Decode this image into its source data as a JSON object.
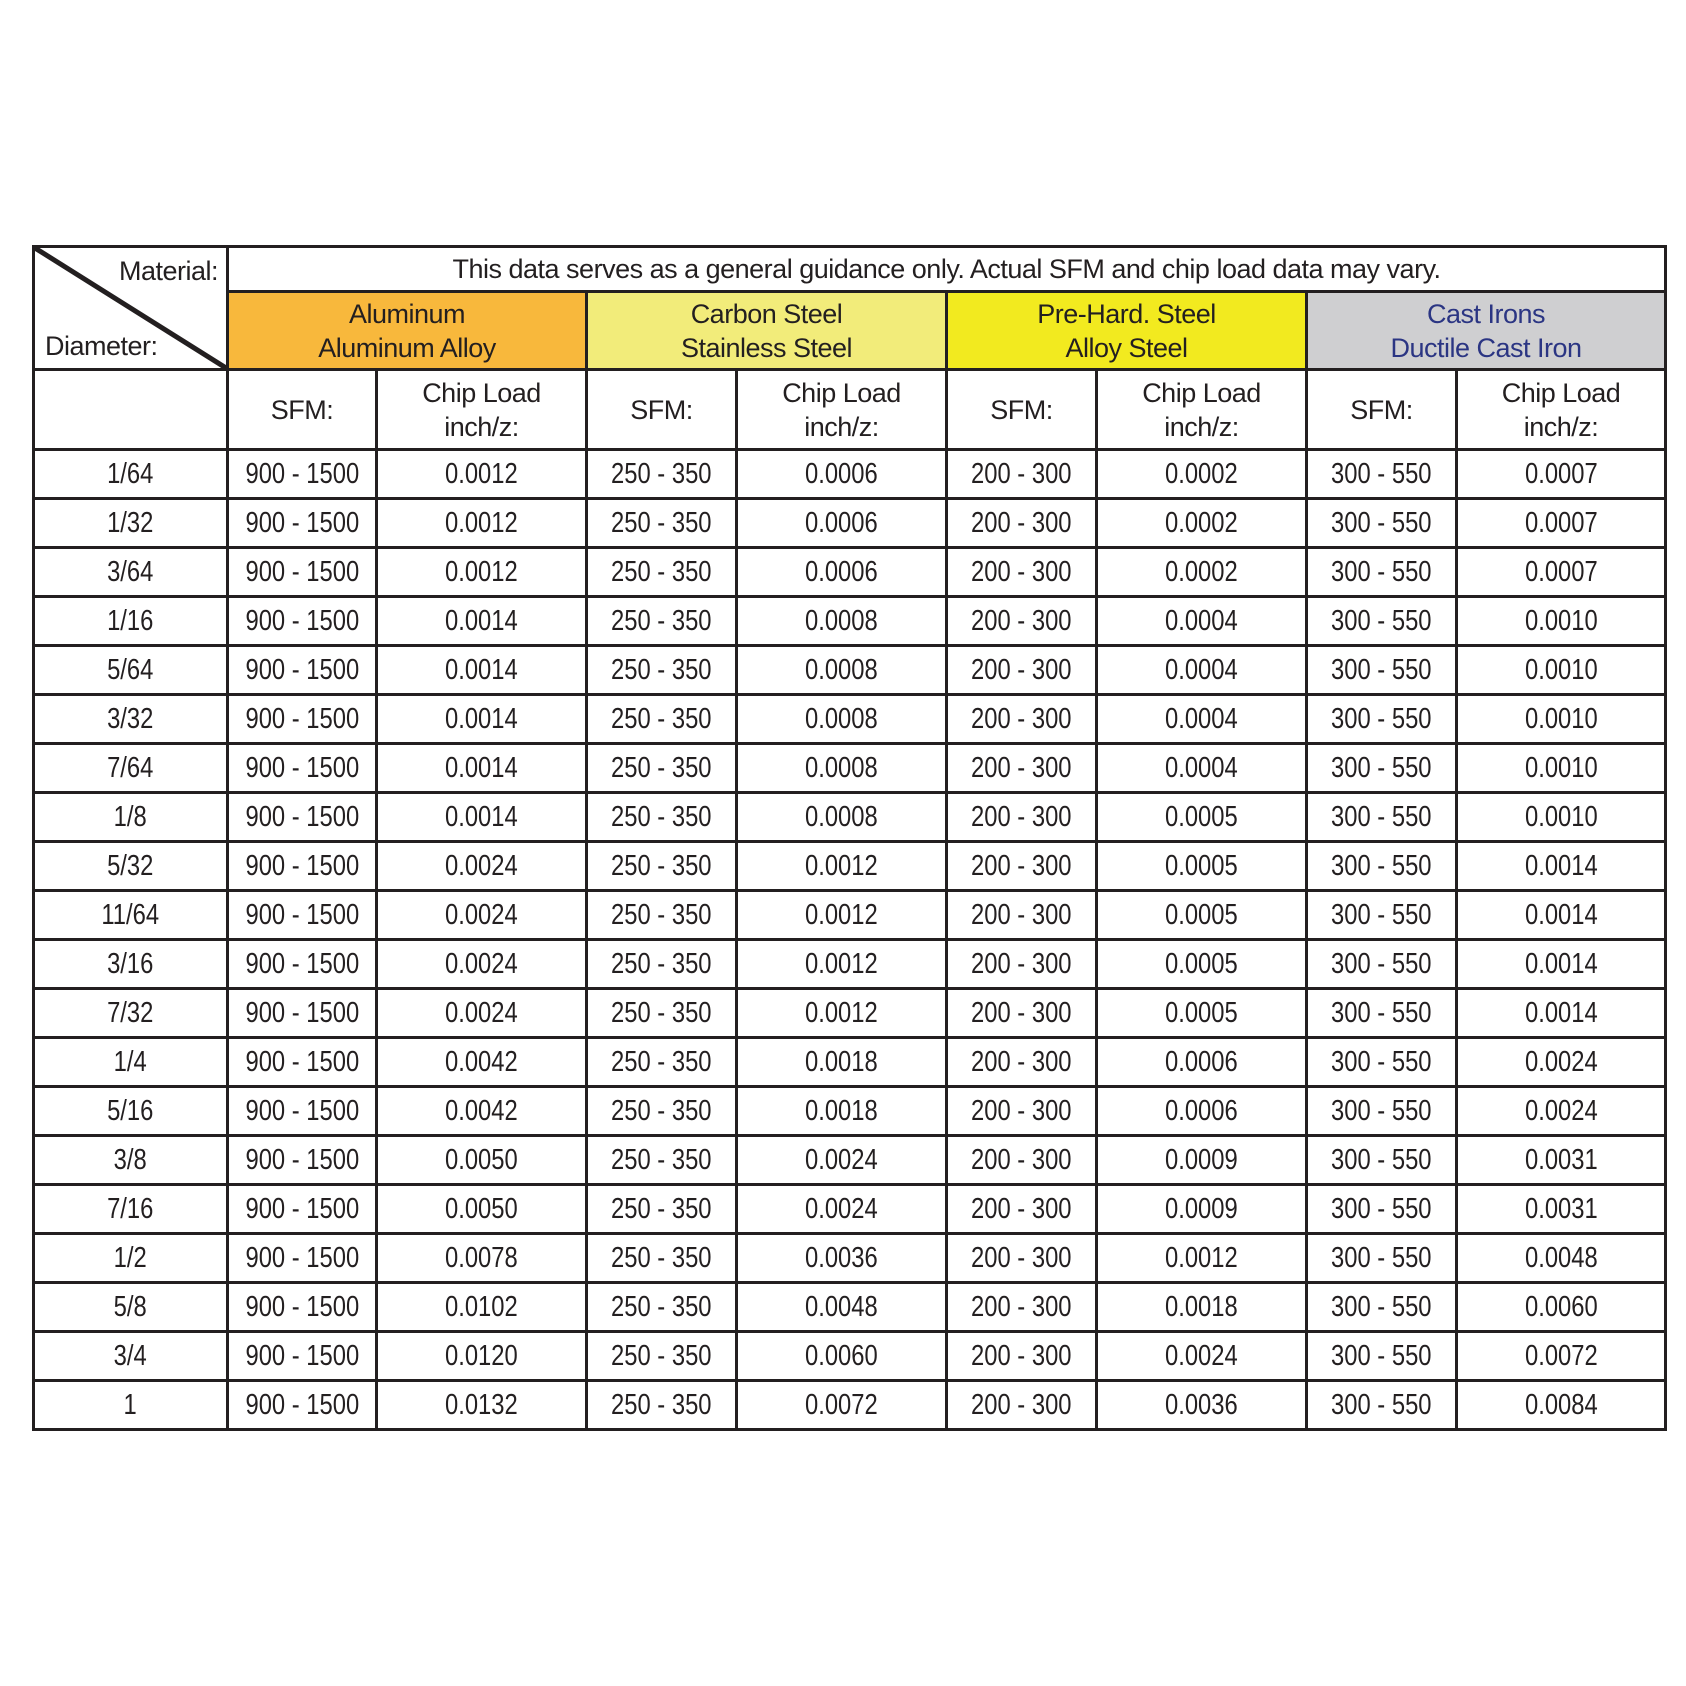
{
  "header": {
    "material_label": "Material:",
    "diameter_label": "Diameter:",
    "note": "This data serves as a general guidance only. Actual SFM and chip load data may vary."
  },
  "materials": [
    {
      "line1": "Aluminum",
      "line2": "Aluminum Alloy",
      "color": "#f8b83c",
      "text_color": "#231f20"
    },
    {
      "line1": "Carbon Steel",
      "line2": "Stainless Steel",
      "color": "#f2ec7a",
      "text_color": "#231f20"
    },
    {
      "line1": "Pre-Hard. Steel",
      "line2": "Alloy Steel",
      "color": "#f2ea1f",
      "text_color": "#231f20"
    },
    {
      "line1": "Cast Irons",
      "line2": "Ductile Cast Iron",
      "color": "#cfcfd1",
      "text_color": "#2b3583"
    }
  ],
  "subheaders": {
    "sfm": "SFM:",
    "chip_line1": "Chip Load",
    "chip_line2": "inch/z:"
  },
  "rows": [
    [
      "1/64",
      "900 - 1500",
      "0.0012",
      "250 - 350",
      "0.0006",
      "200 - 300",
      "0.0002",
      "300 - 550",
      "0.0007"
    ],
    [
      "1/32",
      "900 - 1500",
      "0.0012",
      "250 - 350",
      "0.0006",
      "200 - 300",
      "0.0002",
      "300 - 550",
      "0.0007"
    ],
    [
      "3/64",
      "900 - 1500",
      "0.0012",
      "250 - 350",
      "0.0006",
      "200 - 300",
      "0.0002",
      "300 - 550",
      "0.0007"
    ],
    [
      "1/16",
      "900 - 1500",
      "0.0014",
      "250 - 350",
      "0.0008",
      "200 - 300",
      "0.0004",
      "300 - 550",
      "0.0010"
    ],
    [
      "5/64",
      "900 - 1500",
      "0.0014",
      "250 - 350",
      "0.0008",
      "200 - 300",
      "0.0004",
      "300 - 550",
      "0.0010"
    ],
    [
      "3/32",
      "900 - 1500",
      "0.0014",
      "250 - 350",
      "0.0008",
      "200 - 300",
      "0.0004",
      "300 - 550",
      "0.0010"
    ],
    [
      "7/64",
      "900 - 1500",
      "0.0014",
      "250 - 350",
      "0.0008",
      "200 - 300",
      "0.0004",
      "300 - 550",
      "0.0010"
    ],
    [
      "1/8",
      "900 - 1500",
      "0.0014",
      "250 - 350",
      "0.0008",
      "200 - 300",
      "0.0005",
      "300 - 550",
      "0.0010"
    ],
    [
      "5/32",
      "900 - 1500",
      "0.0024",
      "250 - 350",
      "0.0012",
      "200 - 300",
      "0.0005",
      "300 - 550",
      "0.0014"
    ],
    [
      "11/64",
      "900 - 1500",
      "0.0024",
      "250 - 350",
      "0.0012",
      "200 - 300",
      "0.0005",
      "300 - 550",
      "0.0014"
    ],
    [
      "3/16",
      "900 - 1500",
      "0.0024",
      "250 - 350",
      "0.0012",
      "200 - 300",
      "0.0005",
      "300 - 550",
      "0.0014"
    ],
    [
      "7/32",
      "900 - 1500",
      "0.0024",
      "250 - 350",
      "0.0012",
      "200 - 300",
      "0.0005",
      "300 - 550",
      "0.0014"
    ],
    [
      "1/4",
      "900 - 1500",
      "0.0042",
      "250 - 350",
      "0.0018",
      "200 - 300",
      "0.0006",
      "300 - 550",
      "0.0024"
    ],
    [
      "5/16",
      "900 - 1500",
      "0.0042",
      "250 - 350",
      "0.0018",
      "200 - 300",
      "0.0006",
      "300 - 550",
      "0.0024"
    ],
    [
      "3/8",
      "900 - 1500",
      "0.0050",
      "250 - 350",
      "0.0024",
      "200 - 300",
      "0.0009",
      "300 - 550",
      "0.0031"
    ],
    [
      "7/16",
      "900 - 1500",
      "0.0050",
      "250 - 350",
      "0.0024",
      "200 - 300",
      "0.0009",
      "300 - 550",
      "0.0031"
    ],
    [
      "1/2",
      "900 - 1500",
      "0.0078",
      "250 - 350",
      "0.0036",
      "200 - 300",
      "0.0012",
      "300 - 550",
      "0.0048"
    ],
    [
      "5/8",
      "900 - 1500",
      "0.0102",
      "250 - 350",
      "0.0048",
      "200 - 300",
      "0.0018",
      "300 - 550",
      "0.0060"
    ],
    [
      "3/4",
      "900 - 1500",
      "0.0120",
      "250 - 350",
      "0.0060",
      "200 - 300",
      "0.0024",
      "300 - 550",
      "0.0072"
    ],
    [
      "1",
      "900 - 1500",
      "0.0132",
      "250 - 350",
      "0.0072",
      "200 - 300",
      "0.0036",
      "300 - 550",
      "0.0084"
    ]
  ]
}
